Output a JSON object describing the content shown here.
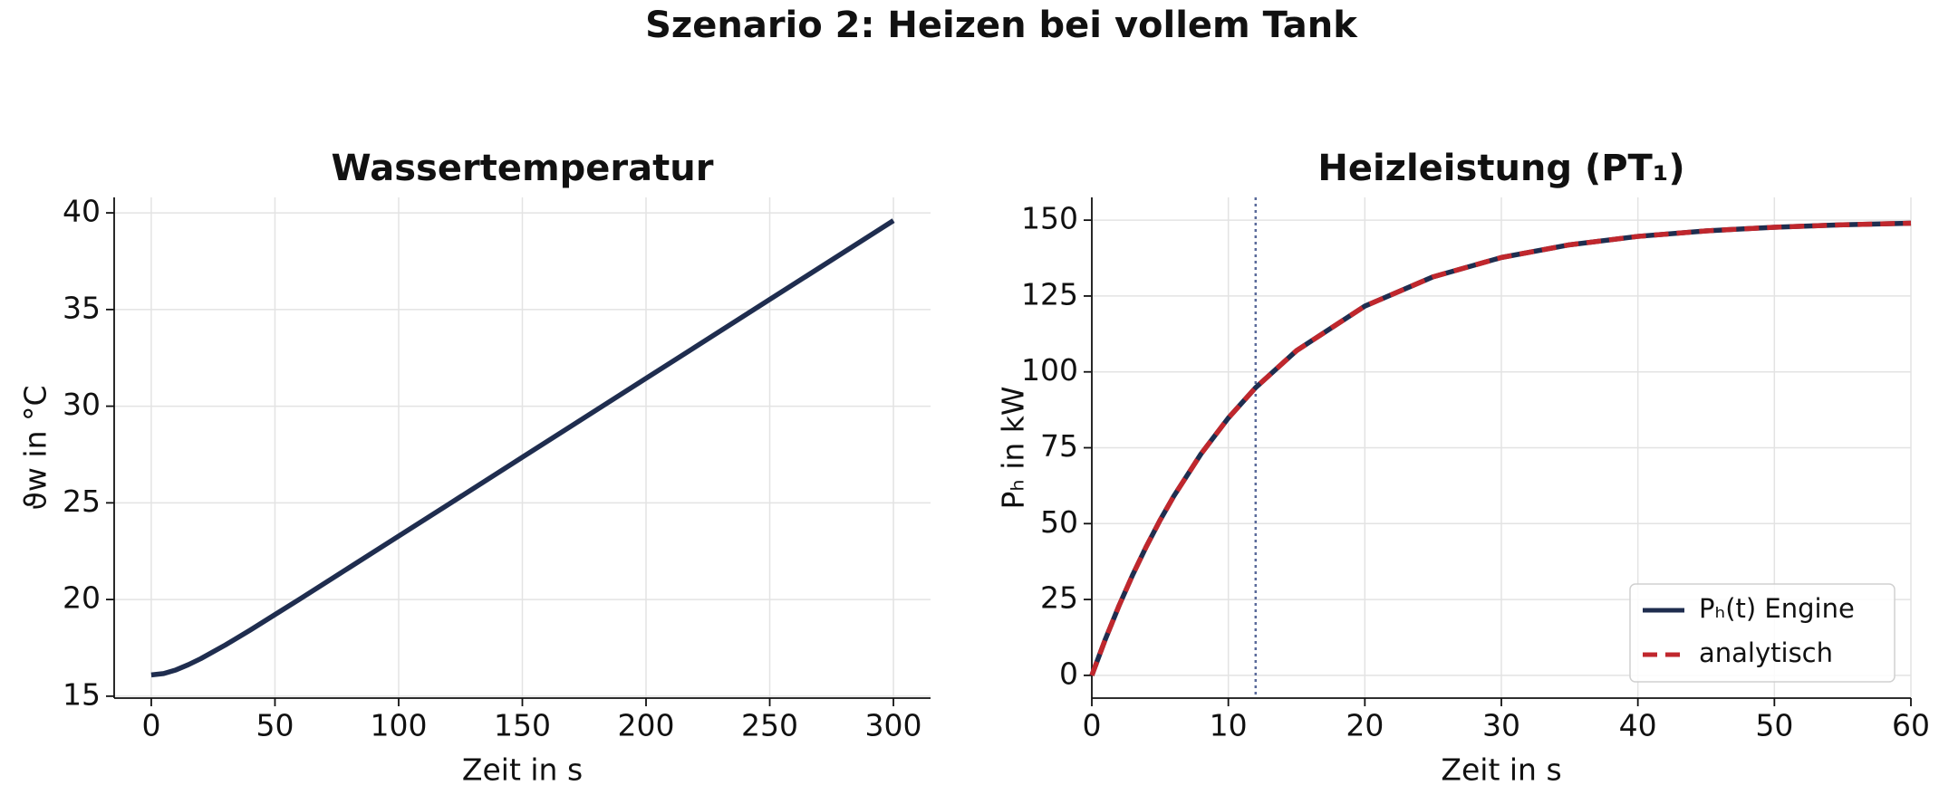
{
  "title": "Szenario 2: Heizen bei vollem Tank",
  "chart_data": [
    {
      "type": "line",
      "title": "Wassertemperatur",
      "xlabel": "Zeit in s",
      "ylabel": "ϑw in °C",
      "x": [
        0,
        5,
        10,
        15,
        20,
        30,
        40,
        50,
        60,
        80,
        100,
        120,
        150,
        200,
        250,
        300
      ],
      "series": [
        {
          "name": null,
          "color": "#1f2d4f",
          "values": [
            16.1,
            16.17,
            16.36,
            16.63,
            16.94,
            17.65,
            18.42,
            19.22,
            20.02,
            21.65,
            23.28,
            24.91,
            27.36,
            31.44,
            35.52,
            39.6
          ]
        }
      ],
      "xlim": [
        -15,
        315
      ],
      "ylim": [
        14.9,
        40.8
      ],
      "xticks": [
        0,
        50,
        100,
        150,
        200,
        250,
        300
      ],
      "yticks": [
        15,
        20,
        25,
        30,
        35,
        40
      ],
      "grid": true
    },
    {
      "type": "line",
      "title": "Heizleistung (PT₁)",
      "xlabel": "Zeit in s",
      "ylabel": "Pₕ in kW",
      "x": [
        0,
        1,
        2,
        3,
        4,
        5,
        6,
        8,
        10,
        12,
        15,
        20,
        25,
        30,
        35,
        40,
        45,
        50,
        55,
        60
      ],
      "series": [
        {
          "name": "Pₕ(t) Engine",
          "color": "#1f2d4f",
          "dash": "solid",
          "values": [
            0,
            12.0,
            23.03,
            33.18,
            42.52,
            51.12,
            59.02,
            72.99,
            84.81,
            94.82,
            107.02,
            121.67,
            131.33,
            137.69,
            141.88,
            144.65,
            146.47,
            147.67,
            148.47,
            148.99
          ]
        },
        {
          "name": "analytisch",
          "color": "#c0272d",
          "dash": "dashed",
          "values": [
            0,
            12.0,
            23.03,
            33.18,
            42.52,
            51.12,
            59.02,
            72.99,
            84.81,
            94.82,
            107.02,
            121.67,
            131.33,
            137.69,
            141.88,
            144.65,
            146.47,
            147.67,
            148.47,
            148.99
          ]
        }
      ],
      "vline": {
        "x": 12,
        "color": "#5a6a9a"
      },
      "xlim": [
        0,
        60
      ],
      "ylim": [
        -7.5,
        157.5
      ],
      "xticks": [
        0,
        10,
        20,
        30,
        40,
        50,
        60
      ],
      "yticks": [
        0,
        25,
        50,
        75,
        100,
        125,
        150
      ],
      "grid": true,
      "legend": "lower right"
    }
  ]
}
